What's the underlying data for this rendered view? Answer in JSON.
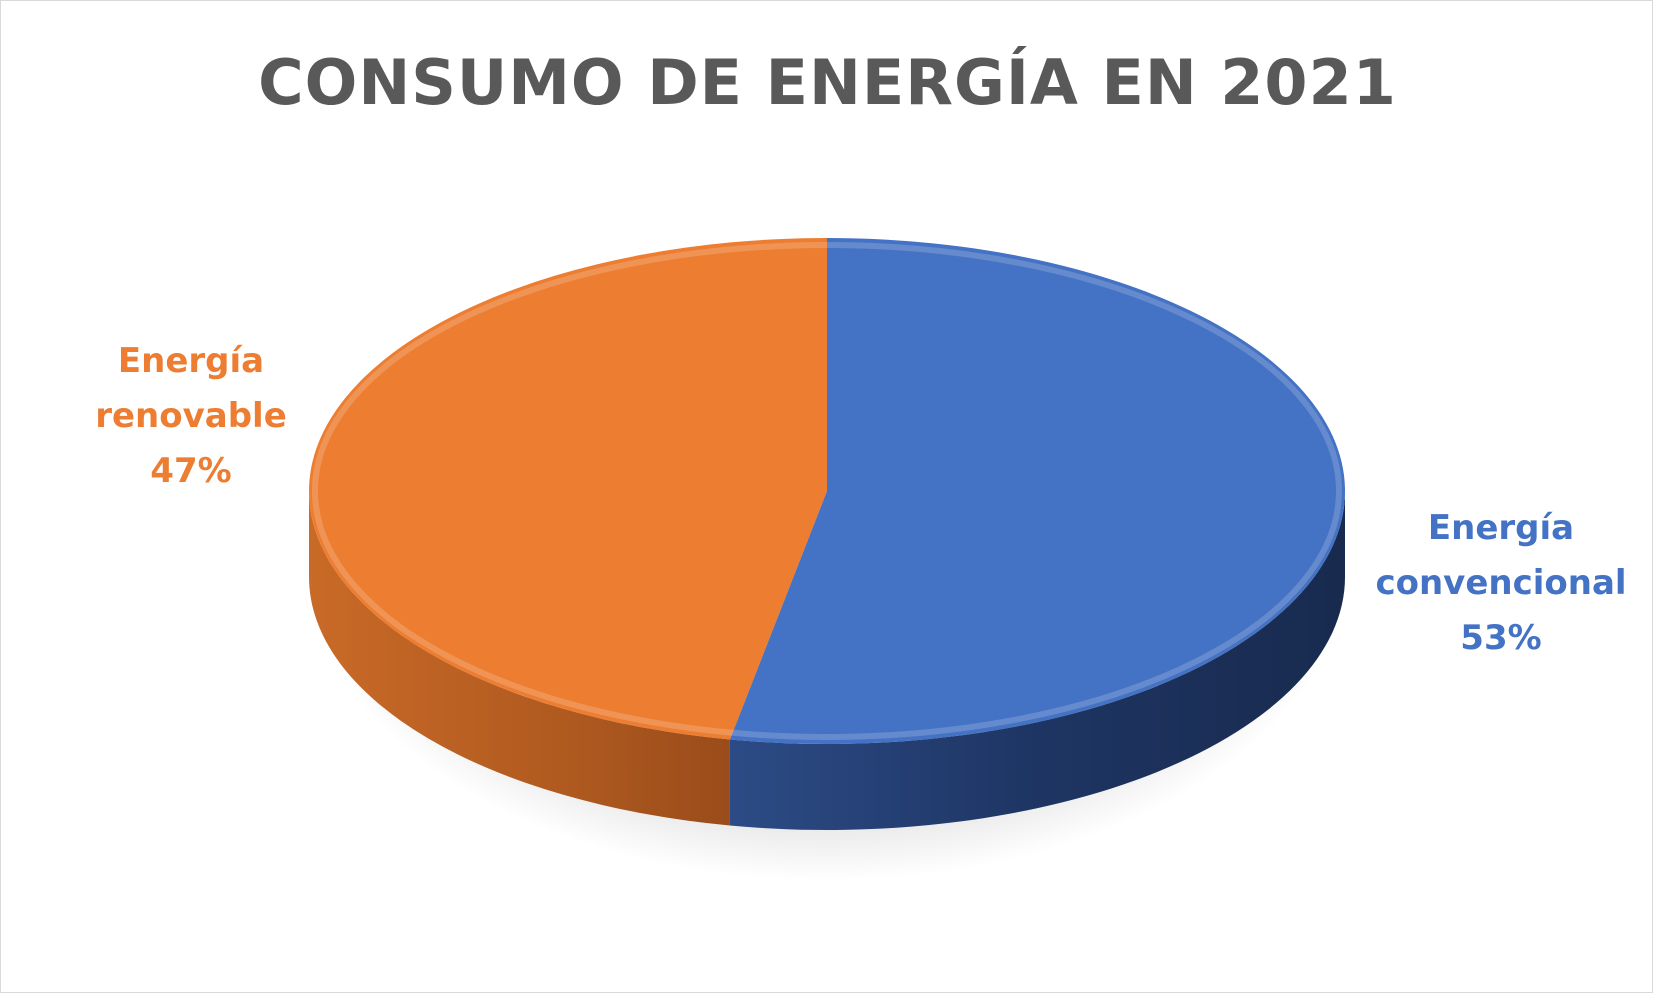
{
  "chart_data": {
    "type": "pie",
    "title": "CONSUMO DE ENERGÍA EN 2021",
    "slices": [
      {
        "name": "Energía convencional",
        "label_line1": "Energía",
        "label_line2": "convencional",
        "value": 53,
        "value_label": "53%",
        "color": "#4472C4",
        "side_color": "#1f3763"
      },
      {
        "name": "Energía renovable",
        "label_line1": "Energía",
        "label_line2": "renovable",
        "value": 47,
        "value_label": "47%",
        "color": "#ED7D31",
        "side_color": "#b0571d"
      }
    ],
    "style": "3d",
    "legend": "none"
  },
  "colors": {
    "title": "#595959",
    "border": "#d9d9d9"
  }
}
